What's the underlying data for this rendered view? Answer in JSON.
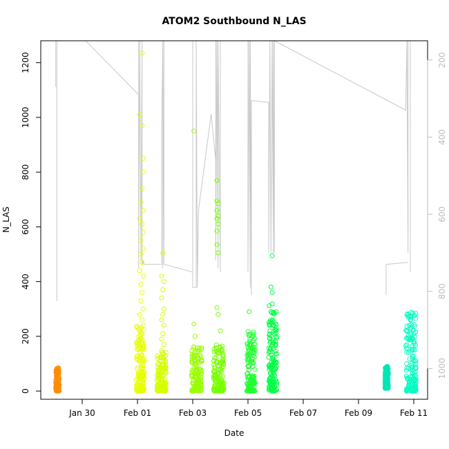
{
  "chart_data": {
    "type": "scatter",
    "title": "ATOM2 Southbound N_LAS",
    "xlabel": "Date",
    "ylabel": "N_LAS",
    "x_axis": {
      "type": "date",
      "range": [
        "2016-01-28T12:00",
        "2016-02-11T12:00"
      ],
      "ticks": [
        {
          "value": "2016-01-30",
          "label": "Jan 30"
        },
        {
          "value": "2016-02-01",
          "label": "Feb 01"
        },
        {
          "value": "2016-02-03",
          "label": "Feb 03"
        },
        {
          "value": "2016-02-05",
          "label": "Feb 05"
        },
        {
          "value": "2016-02-07",
          "label": "Feb 07"
        },
        {
          "value": "2016-02-09",
          "label": "Feb 09"
        },
        {
          "value": "2016-02-11",
          "label": "Feb 11"
        }
      ]
    },
    "y_axis": {
      "range": [
        -30,
        1280
      ],
      "ticks": [
        0,
        200,
        400,
        600,
        800,
        1000,
        1200
      ],
      "tick_labels": [
        "0",
        "200",
        "400",
        "600",
        "800",
        "1000",
        "1200"
      ]
    },
    "y2_axis": {
      "reversed": true,
      "range": [
        1080,
        150
      ],
      "ticks": [
        200,
        400,
        600,
        800,
        1000
      ],
      "tick_labels": [
        "200",
        "400",
        "600",
        "800",
        "1000"
      ],
      "color": "#bdbdbd"
    },
    "grid": false,
    "legend": "none",
    "clusters": [
      {
        "x": [
          "2016-01-29T01:00",
          "2016-01-29T04:00"
        ],
        "y": [
          0,
          85
        ],
        "color": "#ff8c00"
      },
      {
        "x": [
          "2016-01-31T23:00",
          "2016-02-01T06:00"
        ],
        "y": [
          0,
          240
        ],
        "color": "#e6ff00"
      },
      {
        "x": [
          "2016-02-01T17:00",
          "2016-02-02T01:00"
        ],
        "y": [
          0,
          150
        ],
        "color": "#d4ff00"
      },
      {
        "x": [
          "2016-02-02T23:00",
          "2016-02-03T08:00"
        ],
        "y": [
          0,
          170
        ],
        "color": "#99ff00"
      },
      {
        "x": [
          "2016-02-03T18:00",
          "2016-02-04T03:00"
        ],
        "y": [
          0,
          170
        ],
        "color": "#77ff00"
      },
      {
        "x": [
          "2016-02-04T23:00",
          "2016-02-05T06:00"
        ],
        "y": [
          0,
          220
        ],
        "color": "#22ff33"
      },
      {
        "x": [
          "2016-02-05T18:00",
          "2016-02-06T01:00"
        ],
        "y": [
          0,
          320
        ],
        "color": "#00ff44"
      },
      {
        "x": [
          "2016-02-09T23:00",
          "2016-02-10T02:00"
        ],
        "y": [
          10,
          90
        ],
        "color": "#00e6b4"
      },
      {
        "x": [
          "2016-02-10T17:00",
          "2016-02-11T02:00"
        ],
        "y": [
          0,
          290
        ],
        "color": "#00ffc0"
      }
    ],
    "outliers": [
      {
        "x": "2016-02-01T04:00",
        "y": 1235,
        "color": "#e6ff00"
      },
      {
        "x": "2016-02-01T02:00",
        "y": 1010,
        "color": "#e6ff00"
      },
      {
        "x": "2016-02-01T04:00",
        "y": 970,
        "color": "#e6ff00"
      },
      {
        "x": "2016-02-01T05:00",
        "y": 850,
        "color": "#e6ff00"
      },
      {
        "x": "2016-02-01T05:00",
        "y": 800,
        "color": "#e6ff00"
      },
      {
        "x": "2016-02-01T04:00",
        "y": 740,
        "color": "#e6ff00"
      },
      {
        "x": "2016-02-01T03:00",
        "y": 690,
        "color": "#e6ff00"
      },
      {
        "x": "2016-02-01T05:00",
        "y": 660,
        "color": "#e6ff00"
      },
      {
        "x": "2016-02-01T02:00",
        "y": 630,
        "color": "#e6ff00"
      },
      {
        "x": "2016-02-01T04:00",
        "y": 610,
        "color": "#e6ff00"
      },
      {
        "x": "2016-02-01T05:00",
        "y": 580,
        "color": "#e6ff00"
      },
      {
        "x": "2016-02-01T03:00",
        "y": 550,
        "color": "#e6ff00"
      },
      {
        "x": "2016-02-01T05:00",
        "y": 520,
        "color": "#e6ff00"
      },
      {
        "x": "2016-02-01T03:00",
        "y": 500,
        "color": "#e6ff00"
      },
      {
        "x": "2016-02-01T04:00",
        "y": 470,
        "color": "#e6ff00"
      },
      {
        "x": "2016-02-01T02:00",
        "y": 440,
        "color": "#e6ff00"
      },
      {
        "x": "2016-02-01T05:00",
        "y": 420,
        "color": "#e6ff00"
      },
      {
        "x": "2016-02-01T03:00",
        "y": 390,
        "color": "#e6ff00"
      },
      {
        "x": "2016-02-01T04:00",
        "y": 360,
        "color": "#e6ff00"
      },
      {
        "x": "2016-02-01T03:00",
        "y": 330,
        "color": "#e6ff00"
      },
      {
        "x": "2016-02-01T05:00",
        "y": 300,
        "color": "#e6ff00"
      },
      {
        "x": "2016-02-01T02:00",
        "y": 280,
        "color": "#e6ff00"
      },
      {
        "x": "2016-02-01T04:00",
        "y": 260,
        "color": "#e6ff00"
      },
      {
        "x": "2016-02-01T22:00",
        "y": 505,
        "color": "#d4ff00"
      },
      {
        "x": "2016-02-01T21:00",
        "y": 420,
        "color": "#d4ff00"
      },
      {
        "x": "2016-02-01T23:00",
        "y": 400,
        "color": "#d4ff00"
      },
      {
        "x": "2016-02-01T22:00",
        "y": 370,
        "color": "#d4ff00"
      },
      {
        "x": "2016-02-01T21:00",
        "y": 340,
        "color": "#d4ff00"
      },
      {
        "x": "2016-02-01T23:00",
        "y": 300,
        "color": "#d4ff00"
      },
      {
        "x": "2016-02-01T22:00",
        "y": 280,
        "color": "#d4ff00"
      },
      {
        "x": "2016-02-01T21:00",
        "y": 260,
        "color": "#d4ff00"
      },
      {
        "x": "2016-02-01T23:00",
        "y": 240,
        "color": "#d4ff00"
      },
      {
        "x": "2016-02-01T22:00",
        "y": 210,
        "color": "#d4ff00"
      },
      {
        "x": "2016-02-01T21:00",
        "y": 190,
        "color": "#d4ff00"
      },
      {
        "x": "2016-02-01T23:00",
        "y": 170,
        "color": "#d4ff00"
      },
      {
        "x": "2016-02-03T01:00",
        "y": 950,
        "color": "#99ff00"
      },
      {
        "x": "2016-02-03T01:00",
        "y": 245,
        "color": "#99ff00"
      },
      {
        "x": "2016-02-03T02:00",
        "y": 200,
        "color": "#99ff00"
      },
      {
        "x": "2016-02-03T21:00",
        "y": 770,
        "color": "#77ff00"
      },
      {
        "x": "2016-02-03T21:00",
        "y": 695,
        "color": "#77ff00"
      },
      {
        "x": "2016-02-03T22:00",
        "y": 685,
        "color": "#77ff00"
      },
      {
        "x": "2016-02-03T21:00",
        "y": 660,
        "color": "#77ff00"
      },
      {
        "x": "2016-02-03T22:00",
        "y": 640,
        "color": "#77ff00"
      },
      {
        "x": "2016-02-03T21:00",
        "y": 630,
        "color": "#77ff00"
      },
      {
        "x": "2016-02-03T22:00",
        "y": 610,
        "color": "#77ff00"
      },
      {
        "x": "2016-02-03T21:00",
        "y": 585,
        "color": "#77ff00"
      },
      {
        "x": "2016-02-03T21:00",
        "y": 535,
        "color": "#77ff00"
      },
      {
        "x": "2016-02-03T22:00",
        "y": 505,
        "color": "#77ff00"
      },
      {
        "x": "2016-02-03T21:00",
        "y": 305,
        "color": "#77ff00"
      },
      {
        "x": "2016-02-03T22:00",
        "y": 280,
        "color": "#77ff00"
      },
      {
        "x": "2016-02-04T00:00",
        "y": 220,
        "color": "#77ff00"
      },
      {
        "x": "2016-02-05T01:00",
        "y": 290,
        "color": "#22ff33"
      },
      {
        "x": "2016-02-05T21:00",
        "y": 495,
        "color": "#00ff44"
      },
      {
        "x": "2016-02-05T20:00",
        "y": 380,
        "color": "#00ff44"
      },
      {
        "x": "2016-02-05T21:00",
        "y": 360,
        "color": "#00ff44"
      },
      {
        "x": "2016-02-10T23:00",
        "y": 285,
        "color": "#00ffc0"
      },
      {
        "x": "2016-02-10T21:00",
        "y": 260,
        "color": "#00ffc0"
      },
      {
        "x": "2016-02-10T20:00",
        "y": 240,
        "color": "#00ffc0"
      }
    ],
    "overlay_line": {
      "color": "#c8c8c8",
      "axis": "y2",
      "points": [
        [
          "2016-01-29T01:00",
          150
        ],
        [
          "2016-01-29T01:00",
          270
        ],
        [
          "2016-01-29T01:00",
          150
        ],
        [
          "2016-01-29T02:00",
          150
        ],
        [
          "2016-01-29T02:00",
          825
        ],
        [
          "2016-01-29T02:00",
          150
        ],
        [
          "2016-01-30T03:00",
          150
        ],
        [
          "2016-02-01T01:00",
          290
        ],
        [
          "2016-02-01T01:00",
          150
        ],
        [
          "2016-02-01T01:00",
          740
        ],
        [
          "2016-02-01T02:00",
          150
        ],
        [
          "2016-02-01T03:00",
          720
        ],
        [
          "2016-02-01T04:00",
          150
        ],
        [
          "2016-02-01T04:00",
          730
        ],
        [
          "2016-02-01T05:00",
          720
        ],
        [
          "2016-02-01T05:00",
          730
        ],
        [
          "2016-02-01T21:00",
          730
        ],
        [
          "2016-02-01T21:00",
          380
        ],
        [
          "2016-02-01T22:00",
          150
        ],
        [
          "2016-02-01T22:00",
          740
        ],
        [
          "2016-02-01T23:00",
          150
        ],
        [
          "2016-02-01T23:00",
          730
        ],
        [
          "2016-02-03T00:00",
          750
        ],
        [
          "2016-02-03T00:00",
          150
        ],
        [
          "2016-02-03T00:00",
          790
        ],
        [
          "2016-02-03T03:00",
          790
        ],
        [
          "2016-02-03T03:00",
          150
        ],
        [
          "2016-02-03T04:00",
          790
        ],
        [
          "2016-02-03T05:00",
          590
        ],
        [
          "2016-02-03T16:00",
          340
        ],
        [
          "2016-02-03T20:00",
          460
        ],
        [
          "2016-02-03T20:00",
          150
        ],
        [
          "2016-02-03T20:00",
          720
        ],
        [
          "2016-02-03T21:00",
          150
        ],
        [
          "2016-02-03T22:00",
          740
        ],
        [
          "2016-02-03T22:00",
          150
        ],
        [
          "2016-02-04T00:00",
          750
        ],
        [
          "2016-02-04T00:00",
          150
        ],
        [
          "2016-02-05T00:00",
          150
        ],
        [
          "2016-02-05T00:00",
          750
        ],
        [
          "2016-02-05T01:00",
          150
        ],
        [
          "2016-02-05T02:00",
          790
        ],
        [
          "2016-02-05T02:00",
          150
        ],
        [
          "2016-02-05T03:00",
          810
        ],
        [
          "2016-02-05T03:00",
          305
        ],
        [
          "2016-02-05T18:00",
          310
        ],
        [
          "2016-02-05T18:00",
          700
        ],
        [
          "2016-02-05T19:00",
          150
        ],
        [
          "2016-02-05T20:00",
          700
        ],
        [
          "2016-02-05T21:00",
          150
        ],
        [
          "2016-02-05T22:00",
          700
        ],
        [
          "2016-02-05T22:00",
          150
        ],
        [
          "2016-02-05T23:00",
          700
        ],
        [
          "2016-02-05T23:00",
          150
        ],
        [
          "2016-02-10T17:00",
          330
        ],
        [
          "2016-02-10T18:00",
          150
        ],
        [
          "2016-02-10T19:00",
          700
        ],
        [
          "2016-02-10T19:00",
          150
        ]
      ]
    },
    "bridge_segments": [
      {
        "axis": "y2",
        "points": [
          [
            "2016-02-10T00:00",
            810
          ],
          [
            "2016-02-10T00:00",
            730
          ],
          [
            "2016-02-10T19:00",
            725
          ]
        ]
      },
      {
        "axis": "y2",
        "points": [
          [
            "2016-02-10T21:00",
            750
          ],
          [
            "2016-02-10T21:00",
            150
          ]
        ]
      }
    ]
  }
}
